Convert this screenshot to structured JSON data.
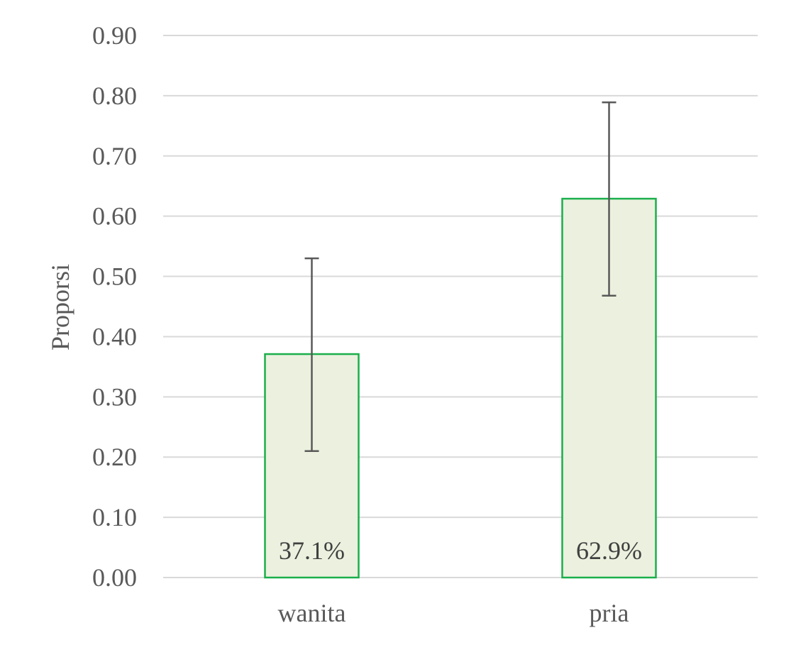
{
  "chart_data": {
    "type": "bar",
    "title": "",
    "xlabel": "",
    "ylabel": "Proporsi",
    "categories": [
      "wanita",
      "pria"
    ],
    "values": [
      0.371,
      0.629
    ],
    "data_labels": [
      "37.1%",
      "62.9%"
    ],
    "error_bars": {
      "lower": [
        0.21,
        0.468
      ],
      "upper": [
        0.53,
        0.789
      ]
    },
    "ylim": [
      0,
      0.9
    ],
    "yticks": [
      0,
      0.1,
      0.2,
      0.3,
      0.4,
      0.5,
      0.6,
      0.7,
      0.8,
      0.9
    ],
    "ytick_labels": [
      "0.00",
      "0.10",
      "0.20",
      "0.30",
      "0.40",
      "0.50",
      "0.60",
      "0.70",
      "0.80",
      "0.90"
    ],
    "grid": true,
    "legend": "none",
    "colors": {
      "bar_fill": "#ebf1de",
      "bar_stroke": "#1aaf4b",
      "error_bar": "#595959",
      "grid": "#d9d9d9",
      "text": "#595959"
    }
  }
}
